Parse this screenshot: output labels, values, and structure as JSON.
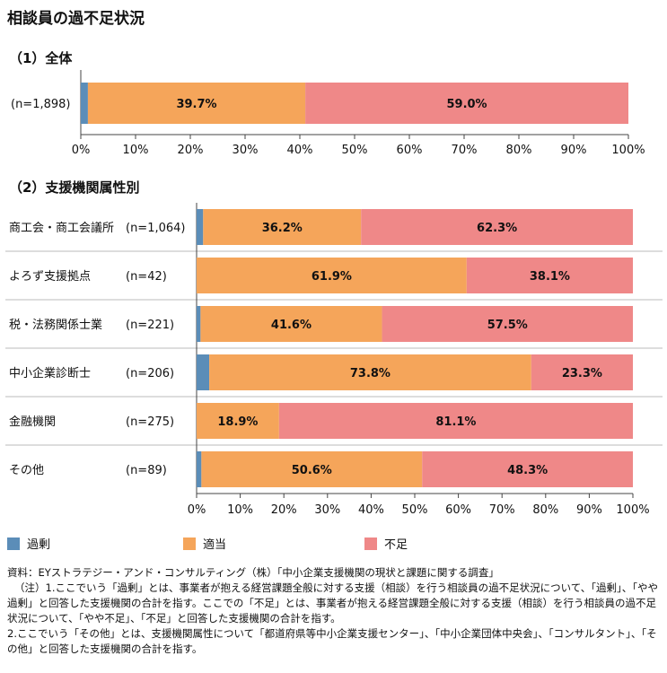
{
  "page": {
    "title": "相談員の過不足状況",
    "section1_title": "（1）全体",
    "section2_title": "（2）支援機関属性別"
  },
  "legend": [
    {
      "name": "過剰",
      "color": "#5b8db8"
    },
    {
      "name": "適当",
      "color": "#f5a55a"
    },
    {
      "name": "不足",
      "color": "#ef8888"
    }
  ],
  "notes": [
    "資料：EYストラテジー・アンド・コンサルティング（株）「中小企業支援機関の現状と課題に関する調査」",
    "（注）1.ここでいう「過剰」とは、事業者が抱える経営課題全般に対する支援（相談）を行う相談員の過不足状況について、「過剰」、「やや過剰」と回答した支援機関の合計を指す。ここでの「不足」とは、事業者が抱える経営課題全般に対する支援（相談）を行う相談員の過不足状況について、「やや不足」、「不足」と回答した支援機関の合計を指す。",
    "2.ここでいう「その他」とは、支援機関属性について「都道府県等中小企業支援センター」、「中小企業団体中央会」、「コンサルタント」、「その他」と回答した支援機関の合計を指す。"
  ],
  "chart_data": [
    {
      "type": "bar",
      "orientation": "horizontal",
      "stacked": true,
      "title": "（1）全体",
      "categories": [
        ""
      ],
      "n_labels": [
        "(n=1,898)"
      ],
      "series": [
        {
          "name": "過剰",
          "values": [
            1.3
          ]
        },
        {
          "name": "適当",
          "values": [
            39.7
          ]
        },
        {
          "name": "不足",
          "values": [
            59.0
          ]
        }
      ],
      "data_labels": [
        [
          null,
          "39.7%",
          "59.0%"
        ]
      ],
      "xlim": [
        0,
        100
      ],
      "x_ticks": [
        "0%",
        "10%",
        "20%",
        "30%",
        "40%",
        "50%",
        "60%",
        "70%",
        "80%",
        "90%",
        "100%"
      ]
    },
    {
      "type": "bar",
      "orientation": "horizontal",
      "stacked": true,
      "title": "（2）支援機関属性別",
      "categories": [
        "商工会・商工会議所",
        "よろず支援拠点",
        "税・法務関係士業",
        "中小企業診断士",
        "金融機関",
        "その他"
      ],
      "n_labels": [
        "(n=1,064)",
        "(n=42)",
        "(n=221)",
        "(n=206)",
        "(n=275)",
        "(n=89)"
      ],
      "series": [
        {
          "name": "過剰",
          "values": [
            1.5,
            0.0,
            0.9,
            2.9,
            0.0,
            1.1
          ]
        },
        {
          "name": "適当",
          "values": [
            36.2,
            61.9,
            41.6,
            73.8,
            18.9,
            50.6
          ]
        },
        {
          "name": "不足",
          "values": [
            62.3,
            38.1,
            57.5,
            23.3,
            81.1,
            48.3
          ]
        }
      ],
      "data_labels": [
        [
          null,
          "36.2%",
          "62.3%"
        ],
        [
          null,
          "61.9%",
          "38.1%"
        ],
        [
          null,
          "41.6%",
          "57.5%"
        ],
        [
          null,
          "73.8%",
          "23.3%"
        ],
        [
          null,
          "18.9%",
          "81.1%"
        ],
        [
          null,
          "50.6%",
          "48.3%"
        ]
      ],
      "xlim": [
        0,
        100
      ],
      "x_ticks": [
        "0%",
        "10%",
        "20%",
        "30%",
        "40%",
        "50%",
        "60%",
        "70%",
        "80%",
        "90%",
        "100%"
      ]
    }
  ]
}
